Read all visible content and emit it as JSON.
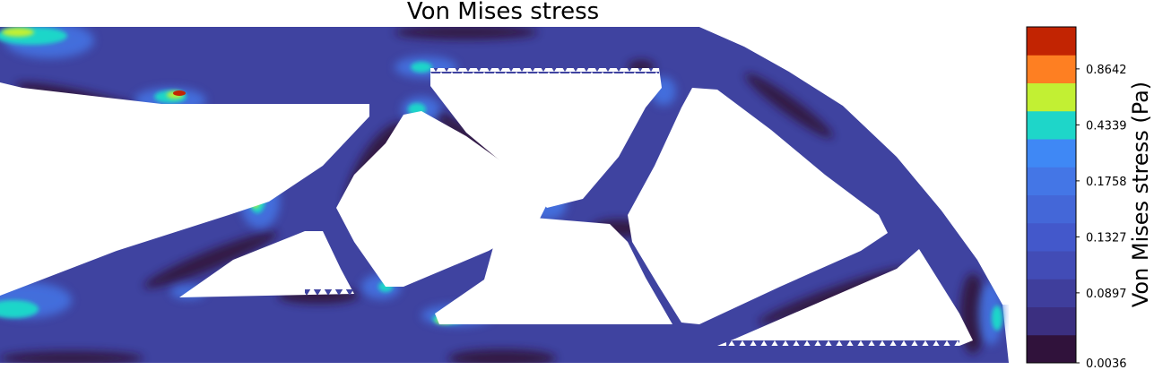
{
  "chart_data": {
    "type": "heatmap",
    "title": "Von Mises stress",
    "colorbar": {
      "label": "Von Mises stress (Pa)",
      "ticks": [
        "0.0036",
        "0.0897",
        "0.1327",
        "0.1758",
        "0.4339",
        "0.8642"
      ],
      "bands": [
        {
          "color": "#30123b"
        },
        {
          "color": "#3b2f80"
        },
        {
          "color": "#3f3e9c"
        },
        {
          "color": "#424cb6"
        },
        {
          "color": "#4358cb"
        },
        {
          "color": "#4467d8"
        },
        {
          "color": "#4476e6"
        },
        {
          "color": "#3f88f5"
        },
        {
          "color": "#1ed6c9"
        },
        {
          "color": "#c2f033"
        },
        {
          "color": "#fe7f22"
        },
        {
          "color": "#c22402"
        }
      ]
    },
    "colors": {
      "background_field": "#3f43a0",
      "low_stress": "#30123b",
      "mid_stress": "#4476e6",
      "high_stress": "#1ed6c9",
      "peak_stress": "#c22402"
    }
  }
}
